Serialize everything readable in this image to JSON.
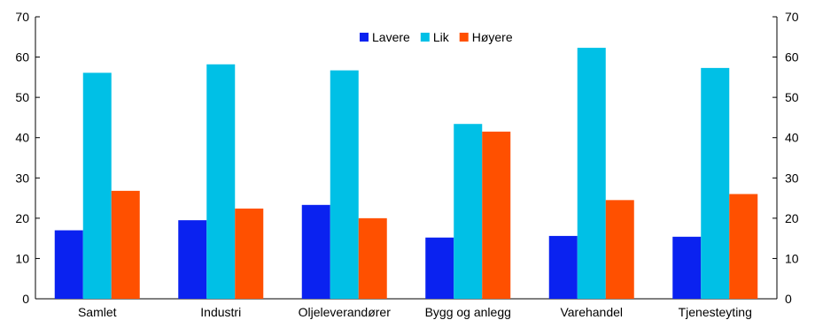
{
  "chart_data": {
    "type": "bar",
    "categories": [
      "Samlet",
      "Industri",
      "Oljeleverandører",
      "Bygg og anlegg",
      "Varehandel",
      "Tjenesteyting"
    ],
    "series": [
      {
        "name": "Lavere",
        "color": "#0A22F0",
        "values": [
          17,
          19.5,
          23.3,
          15.2,
          15.6,
          15.4
        ]
      },
      {
        "name": "Lik",
        "color": "#00C0E6",
        "values": [
          56.1,
          58.2,
          56.7,
          43.4,
          62.3,
          57.3
        ]
      },
      {
        "name": "Høyere",
        "color": "#FF5000",
        "values": [
          26.8,
          22.4,
          20,
          41.5,
          24.5,
          26
        ]
      }
    ],
    "ylim": [
      0,
      70
    ],
    "yticks": [
      0,
      10,
      20,
      30,
      40,
      50,
      60,
      70
    ],
    "legend_position": "top-center",
    "grid": false,
    "right_axis_mirror": true
  }
}
